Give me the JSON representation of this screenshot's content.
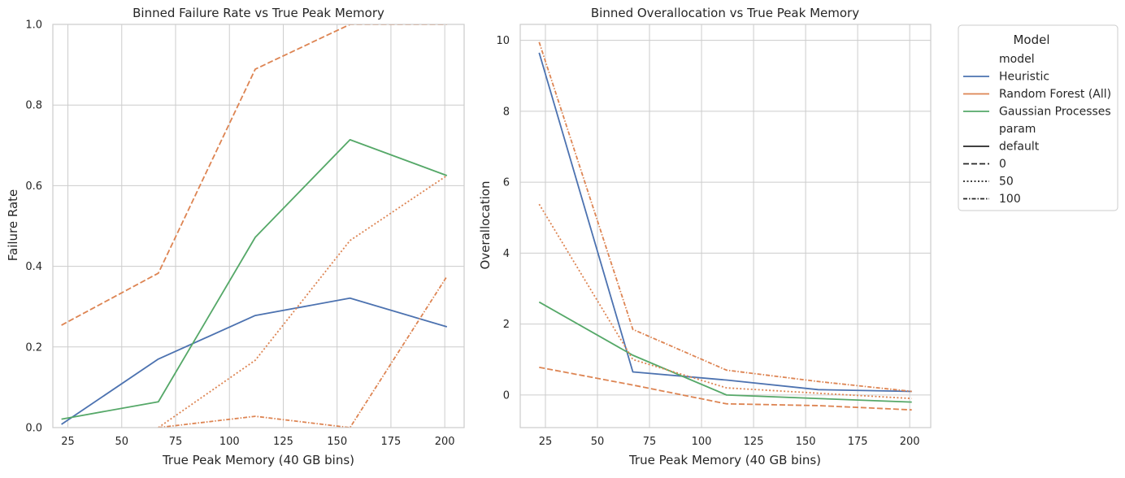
{
  "colors": {
    "Heuristic": "#4c72b0",
    "Random Forest (All)": "#dd8452",
    "Gaussian Processes": "#55a868",
    "grid": "#cccccc",
    "spine": "#cccccc",
    "param_sample": "#262626"
  },
  "legend": {
    "title": "Model",
    "model_header": "model",
    "models": [
      "Heuristic",
      "Random Forest (All)",
      "Gaussian Processes"
    ],
    "param_header": "param",
    "params": [
      {
        "label": "default",
        "style": "solid"
      },
      {
        "label": "0",
        "style": "dashed"
      },
      {
        "label": "50",
        "style": "dotted"
      },
      {
        "label": "100",
        "style": "dashdot"
      }
    ]
  },
  "chart_data": [
    {
      "type": "line",
      "title": "Binned Failure Rate vs True Peak Memory",
      "xlabel": "True Peak Memory (40 GB bins)",
      "ylabel": "Failure Rate",
      "xlim": [
        18,
        209
      ],
      "ylim": [
        0,
        1.0
      ],
      "xticks": [
        25,
        50,
        75,
        100,
        125,
        150,
        175,
        200
      ],
      "xtick_labels": [
        "25",
        "50",
        "75",
        "100",
        "125",
        "150",
        "175",
        "200"
      ],
      "yticks": [
        0,
        0.2,
        0.4,
        0.6,
        0.8,
        1.0
      ],
      "ytick_labels": [
        "0.0",
        "0.2",
        "0.4",
        "0.6",
        "0.8",
        "1.0"
      ],
      "grid": true,
      "series": [
        {
          "model": "Heuristic",
          "param": "default",
          "x": [
            22,
            67,
            112,
            156,
            201
          ],
          "y": [
            0.008,
            0.17,
            0.278,
            0.321,
            0.25
          ]
        },
        {
          "model": "Gaussian Processes",
          "param": "default",
          "x": [
            22,
            67,
            112,
            156,
            201
          ],
          "y": [
            0.021,
            0.064,
            0.472,
            0.714,
            0.625
          ]
        },
        {
          "model": "Random Forest (All)",
          "param": "0",
          "x": [
            22,
            67,
            112,
            156,
            201
          ],
          "y": [
            0.254,
            0.383,
            0.889,
            1.0,
            1.0
          ]
        },
        {
          "model": "Random Forest (All)",
          "param": "50",
          "x": [
            67,
            112,
            156,
            201
          ],
          "y": [
            0.0,
            0.167,
            0.464,
            0.625
          ]
        },
        {
          "model": "Random Forest (All)",
          "param": "100",
          "x": [
            67,
            112,
            156,
            201
          ],
          "y": [
            0.0,
            0.028,
            0.0,
            0.375
          ]
        }
      ]
    },
    {
      "type": "line",
      "title": "Binned Overallocation vs True Peak Memory",
      "xlabel": "True Peak Memory (40 GB bins)",
      "ylabel": "Overallocation",
      "xlim": [
        12.9,
        210.1
      ],
      "ylim": [
        -0.92,
        10.45
      ],
      "xticks": [
        25,
        50,
        75,
        100,
        125,
        150,
        175,
        200
      ],
      "xtick_labels": [
        "25",
        "50",
        "75",
        "100",
        "125",
        "150",
        "175",
        "200"
      ],
      "yticks": [
        0,
        2,
        4,
        6,
        8,
        10
      ],
      "ytick_labels": [
        "0",
        "2",
        "4",
        "6",
        "8",
        "10"
      ],
      "grid": true,
      "series": [
        {
          "model": "Heuristic",
          "param": "default",
          "x": [
            22,
            67,
            112,
            156,
            201
          ],
          "y": [
            9.65,
            0.65,
            0.42,
            0.15,
            0.1
          ]
        },
        {
          "model": "Gaussian Processes",
          "param": "default",
          "x": [
            22,
            67,
            112,
            156,
            201
          ],
          "y": [
            2.62,
            1.12,
            0.0,
            -0.1,
            -0.2
          ]
        },
        {
          "model": "Random Forest (All)",
          "param": "0",
          "x": [
            22,
            67,
            112,
            156,
            201
          ],
          "y": [
            0.78,
            0.28,
            -0.25,
            -0.3,
            -0.42
          ]
        },
        {
          "model": "Random Forest (All)",
          "param": "50",
          "x": [
            22,
            67,
            112,
            156,
            201
          ],
          "y": [
            5.38,
            1.0,
            0.2,
            0.05,
            -0.1
          ]
        },
        {
          "model": "Random Forest (All)",
          "param": "100",
          "x": [
            22,
            67,
            112,
            156,
            201
          ],
          "y": [
            9.95,
            1.85,
            0.7,
            0.38,
            0.1
          ]
        }
      ]
    }
  ]
}
